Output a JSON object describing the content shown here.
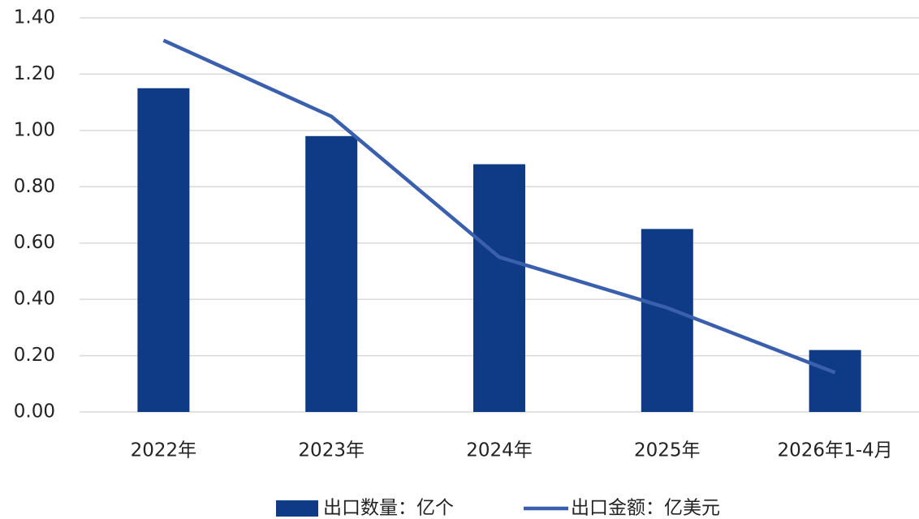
{
  "chart_data": {
    "type": "bar",
    "categories": [
      "2022年",
      "2023年",
      "2024年",
      "2025年",
      "2026年1-4月"
    ],
    "series": [
      {
        "name": "出口数量：亿个",
        "type": "bar",
        "color": "#0f3a85",
        "values": [
          1.15,
          0.98,
          0.88,
          0.65,
          0.22
        ]
      },
      {
        "name": "出口金额：亿美元",
        "type": "line",
        "color": "#3a5fad",
        "values": [
          1.32,
          1.05,
          0.55,
          0.37,
          0.14
        ]
      }
    ],
    "ylim": [
      0,
      1.4
    ],
    "yticks": [
      {
        "value": 0,
        "label": "0.00"
      },
      {
        "value": 0.2,
        "label": "0.20"
      },
      {
        "value": 0.4,
        "label": "0.40"
      },
      {
        "value": 0.6,
        "label": "0.60"
      },
      {
        "value": 0.8,
        "label": "0.80"
      },
      {
        "value": 1.0,
        "label": "1.00"
      },
      {
        "value": 1.2,
        "label": "1.20"
      },
      {
        "value": 1.4,
        "label": "1.40"
      }
    ],
    "grid": true,
    "legend": "bottom"
  }
}
